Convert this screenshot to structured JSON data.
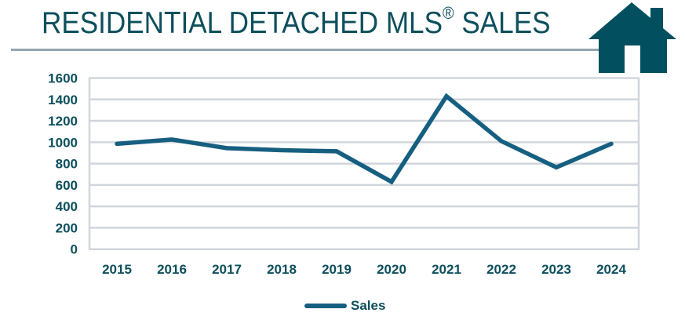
{
  "header": {
    "title": "RESIDENTIAL DETACHED MLS",
    "title_mark": "®",
    "title_suffix": " SALES",
    "icon": "house-icon"
  },
  "colors": {
    "title": "#0d4f5c",
    "line": "#165f80",
    "grid": "#d0d6dc",
    "divider": "#95a5b2",
    "house": "#02505f",
    "tick_text": "#0d4f5c"
  },
  "chart_data": {
    "type": "line",
    "title": "RESIDENTIAL DETACHED MLS® SALES",
    "xlabel": "",
    "ylabel": "",
    "categories": [
      "2015",
      "2016",
      "2017",
      "2018",
      "2019",
      "2020",
      "2021",
      "2022",
      "2023",
      "2024"
    ],
    "series": [
      {
        "name": "Sales",
        "values": [
          985,
          1025,
          945,
          925,
          915,
          630,
          1430,
          1010,
          765,
          985
        ]
      }
    ],
    "ylim": [
      0,
      1600
    ],
    "yticks": [
      0,
      200,
      400,
      600,
      800,
      1000,
      1200,
      1400,
      1600
    ],
    "grid": true,
    "legend": "bottom-center"
  },
  "legend": {
    "label": "Sales"
  }
}
